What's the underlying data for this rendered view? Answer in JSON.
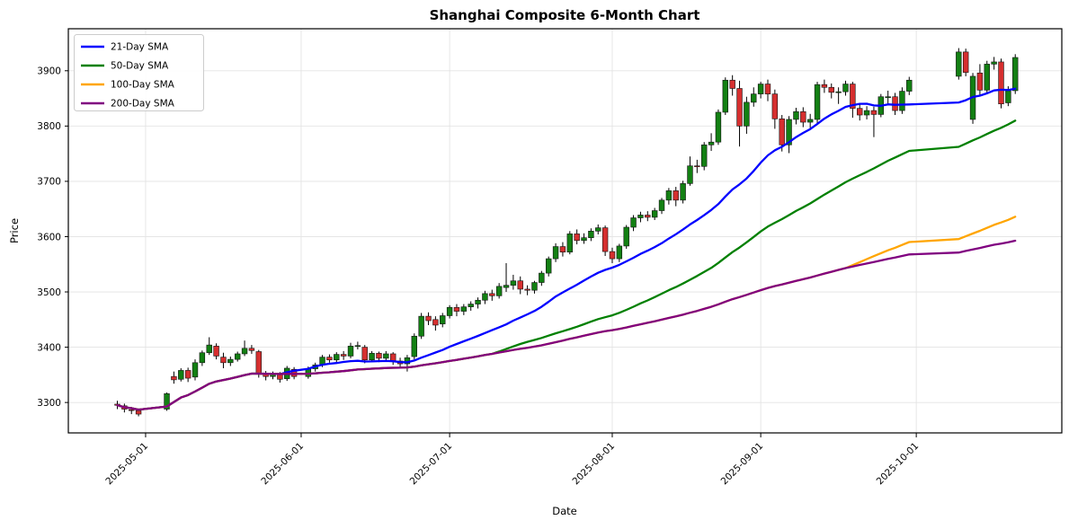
{
  "title": "Shanghai Composite 6-Month Chart",
  "axes": {
    "xlabel": "Date",
    "ylabel": "Price"
  },
  "legend": {
    "items": [
      {
        "label": "21-Day SMA",
        "color": "#0000ff",
        "window": 21
      },
      {
        "label": "50-Day SMA",
        "color": "#008000",
        "window": 50
      },
      {
        "label": "100-Day SMA",
        "color": "#ffa500",
        "window": 100
      },
      {
        "label": "200-Day SMA",
        "color": "#800080",
        "window": 200
      }
    ]
  },
  "chart_data": {
    "type": "candlestick",
    "title": "Shanghai Composite 6-Month Chart",
    "xlabel": "Date",
    "ylabel": "Price",
    "grid": true,
    "legend_position": "upper-left",
    "ylim": [
      3245,
      3976
    ],
    "y_ticks": [
      3300,
      3400,
      3500,
      3600,
      3700,
      3800,
      3900
    ],
    "x_ticks": [
      {
        "label": "2025-05-01",
        "slot": 4
      },
      {
        "label": "2025-06-01",
        "slot": 26
      },
      {
        "label": "2025-07-01",
        "slot": 47
      },
      {
        "label": "2025-08-01",
        "slot": 70
      },
      {
        "label": "2025-09-01",
        "slot": 91
      },
      {
        "label": "2025-10-01",
        "slot": 113
      }
    ],
    "total_slots": 128,
    "colors": {
      "up": "#138013",
      "down": "#d62f2f",
      "wick": "#000000",
      "grid": "#e3e3e3",
      "spine": "#000000"
    },
    "sma_note": "SMAs computed on closes with expanding mean until window is filled (lines overlap at left, 200-day drawn on top)",
    "candles": [
      [
        0,
        3297,
        3303,
        3288,
        3295
      ],
      [
        1,
        3294,
        3298,
        3282,
        3288
      ],
      [
        2,
        3287,
        3292,
        3279,
        3286
      ],
      [
        3,
        3285,
        3289,
        3275,
        3279
      ],
      [
        7,
        3288,
        3318,
        3285,
        3316
      ],
      [
        8,
        3347,
        3356,
        3334,
        3341
      ],
      [
        9,
        3342,
        3362,
        3338,
        3358
      ],
      [
        10,
        3358,
        3363,
        3337,
        3344
      ],
      [
        11,
        3346,
        3378,
        3340,
        3372
      ],
      [
        12,
        3372,
        3394,
        3366,
        3390
      ],
      [
        13,
        3390,
        3418,
        3386,
        3404
      ],
      [
        14,
        3402,
        3407,
        3378,
        3384
      ],
      [
        15,
        3382,
        3390,
        3362,
        3372
      ],
      [
        16,
        3372,
        3383,
        3366,
        3378
      ],
      [
        17,
        3378,
        3392,
        3374,
        3388
      ],
      [
        18,
        3388,
        3412,
        3384,
        3398
      ],
      [
        19,
        3398,
        3404,
        3388,
        3394
      ],
      [
        20,
        3392,
        3395,
        3345,
        3352
      ],
      [
        21,
        3352,
        3357,
        3340,
        3347
      ],
      [
        22,
        3347,
        3356,
        3342,
        3351
      ],
      [
        23,
        3351,
        3355,
        3336,
        3342
      ],
      [
        24,
        3343,
        3366,
        3339,
        3362
      ],
      [
        25,
        3360,
        3364,
        3342,
        3347
      ],
      [
        27,
        3347,
        3365,
        3343,
        3361
      ],
      [
        28,
        3361,
        3372,
        3356,
        3368
      ],
      [
        29,
        3368,
        3386,
        3364,
        3382
      ],
      [
        30,
        3382,
        3387,
        3372,
        3377
      ],
      [
        31,
        3377,
        3391,
        3373,
        3387
      ],
      [
        32,
        3387,
        3393,
        3377,
        3384
      ],
      [
        33,
        3384,
        3408,
        3380,
        3402
      ],
      [
        34,
        3402,
        3410,
        3396,
        3403
      ],
      [
        35,
        3400,
        3404,
        3371,
        3377
      ],
      [
        36,
        3377,
        3393,
        3373,
        3389
      ],
      [
        37,
        3389,
        3392,
        3373,
        3380
      ],
      [
        38,
        3380,
        3393,
        3376,
        3388
      ],
      [
        39,
        3388,
        3391,
        3368,
        3375
      ],
      [
        40,
        3375,
        3381,
        3362,
        3370
      ],
      [
        41,
        3370,
        3386,
        3356,
        3381
      ],
      [
        42,
        3383,
        3425,
        3378,
        3420
      ],
      [
        43,
        3420,
        3462,
        3415,
        3456
      ],
      [
        44,
        3456,
        3463,
        3440,
        3448
      ],
      [
        45,
        3450,
        3456,
        3430,
        3440
      ],
      [
        46,
        3442,
        3462,
        3436,
        3457
      ],
      [
        47,
        3457,
        3476,
        3452,
        3472
      ],
      [
        48,
        3472,
        3478,
        3456,
        3465
      ],
      [
        49,
        3465,
        3478,
        3458,
        3473
      ],
      [
        50,
        3473,
        3483,
        3466,
        3478
      ],
      [
        51,
        3478,
        3490,
        3470,
        3485
      ],
      [
        52,
        3485,
        3502,
        3478,
        3497
      ],
      [
        53,
        3497,
        3504,
        3484,
        3493
      ],
      [
        54,
        3493,
        3516,
        3488,
        3510
      ],
      [
        55,
        3508,
        3552,
        3500,
        3512
      ],
      [
        56,
        3512,
        3531,
        3504,
        3520
      ],
      [
        57,
        3520,
        3528,
        3496,
        3505
      ],
      [
        58,
        3505,
        3512,
        3494,
        3503
      ],
      [
        59,
        3503,
        3520,
        3497,
        3517
      ],
      [
        60,
        3517,
        3538,
        3511,
        3534
      ],
      [
        61,
        3534,
        3564,
        3528,
        3560
      ],
      [
        62,
        3560,
        3588,
        3554,
        3582
      ],
      [
        63,
        3582,
        3590,
        3564,
        3572
      ],
      [
        64,
        3572,
        3610,
        3568,
        3605
      ],
      [
        65,
        3605,
        3613,
        3586,
        3593
      ],
      [
        66,
        3593,
        3606,
        3587,
        3598
      ],
      [
        67,
        3598,
        3615,
        3592,
        3610
      ],
      [
        68,
        3610,
        3622,
        3604,
        3616
      ],
      [
        69,
        3616,
        3620,
        3565,
        3573
      ],
      [
        70,
        3573,
        3580,
        3552,
        3560
      ],
      [
        71,
        3560,
        3587,
        3554,
        3583
      ],
      [
        72,
        3583,
        3621,
        3578,
        3617
      ],
      [
        73,
        3617,
        3639,
        3610,
        3634
      ],
      [
        74,
        3634,
        3645,
        3626,
        3639
      ],
      [
        75,
        3639,
        3646,
        3628,
        3635
      ],
      [
        76,
        3635,
        3652,
        3630,
        3647
      ],
      [
        77,
        3647,
        3670,
        3641,
        3666
      ],
      [
        78,
        3666,
        3688,
        3658,
        3683
      ],
      [
        79,
        3683,
        3690,
        3655,
        3666
      ],
      [
        80,
        3666,
        3701,
        3660,
        3696
      ],
      [
        81,
        3696,
        3745,
        3692,
        3728
      ],
      [
        82,
        3728,
        3739,
        3715,
        3727
      ],
      [
        83,
        3727,
        3771,
        3720,
        3766
      ],
      [
        84,
        3766,
        3787,
        3755,
        3771
      ],
      [
        85,
        3771,
        3830,
        3766,
        3825
      ],
      [
        86,
        3825,
        3888,
        3820,
        3883
      ],
      [
        87,
        3883,
        3892,
        3855,
        3868
      ],
      [
        88,
        3868,
        3882,
        3763,
        3800
      ],
      [
        89,
        3800,
        3853,
        3786,
        3843
      ],
      [
        90,
        3843,
        3870,
        3835,
        3858
      ],
      [
        91,
        3858,
        3880,
        3850,
        3876
      ],
      [
        92,
        3876,
        3884,
        3845,
        3858
      ],
      [
        93,
        3858,
        3866,
        3795,
        3813
      ],
      [
        94,
        3813,
        3820,
        3754,
        3766
      ],
      [
        95,
        3766,
        3818,
        3751,
        3812
      ],
      [
        96,
        3812,
        3833,
        3803,
        3826
      ],
      [
        97,
        3826,
        3834,
        3798,
        3807
      ],
      [
        98,
        3807,
        3822,
        3796,
        3812
      ],
      [
        99,
        3812,
        3880,
        3802,
        3875
      ],
      [
        100,
        3875,
        3884,
        3860,
        3870
      ],
      [
        101,
        3870,
        3877,
        3850,
        3861
      ],
      [
        102,
        3861,
        3870,
        3840,
        3862
      ],
      [
        103,
        3862,
        3882,
        3855,
        3876
      ],
      [
        104,
        3876,
        3880,
        3815,
        3832
      ],
      [
        105,
        3832,
        3840,
        3810,
        3820
      ],
      [
        106,
        3820,
        3836,
        3812,
        3828
      ],
      [
        107,
        3828,
        3835,
        3780,
        3821
      ],
      [
        108,
        3821,
        3858,
        3816,
        3853
      ],
      [
        109,
        3853,
        3864,
        3840,
        3853
      ],
      [
        110,
        3853,
        3860,
        3820,
        3828
      ],
      [
        111,
        3828,
        3870,
        3822,
        3863
      ],
      [
        112,
        3863,
        3889,
        3856,
        3883
      ],
      [
        119,
        3890,
        3941,
        3884,
        3934
      ],
      [
        120,
        3934,
        3940,
        3890,
        3897
      ],
      [
        121,
        3812,
        3896,
        3804,
        3890
      ],
      [
        122,
        3896,
        3912,
        3855,
        3865
      ],
      [
        123,
        3865,
        3918,
        3858,
        3912
      ],
      [
        124,
        3912,
        3925,
        3902,
        3916
      ],
      [
        125,
        3916,
        3922,
        3832,
        3840
      ],
      [
        126,
        3842,
        3872,
        3836,
        3864
      ],
      [
        127,
        3864,
        3930,
        3858,
        3924
      ]
    ]
  }
}
